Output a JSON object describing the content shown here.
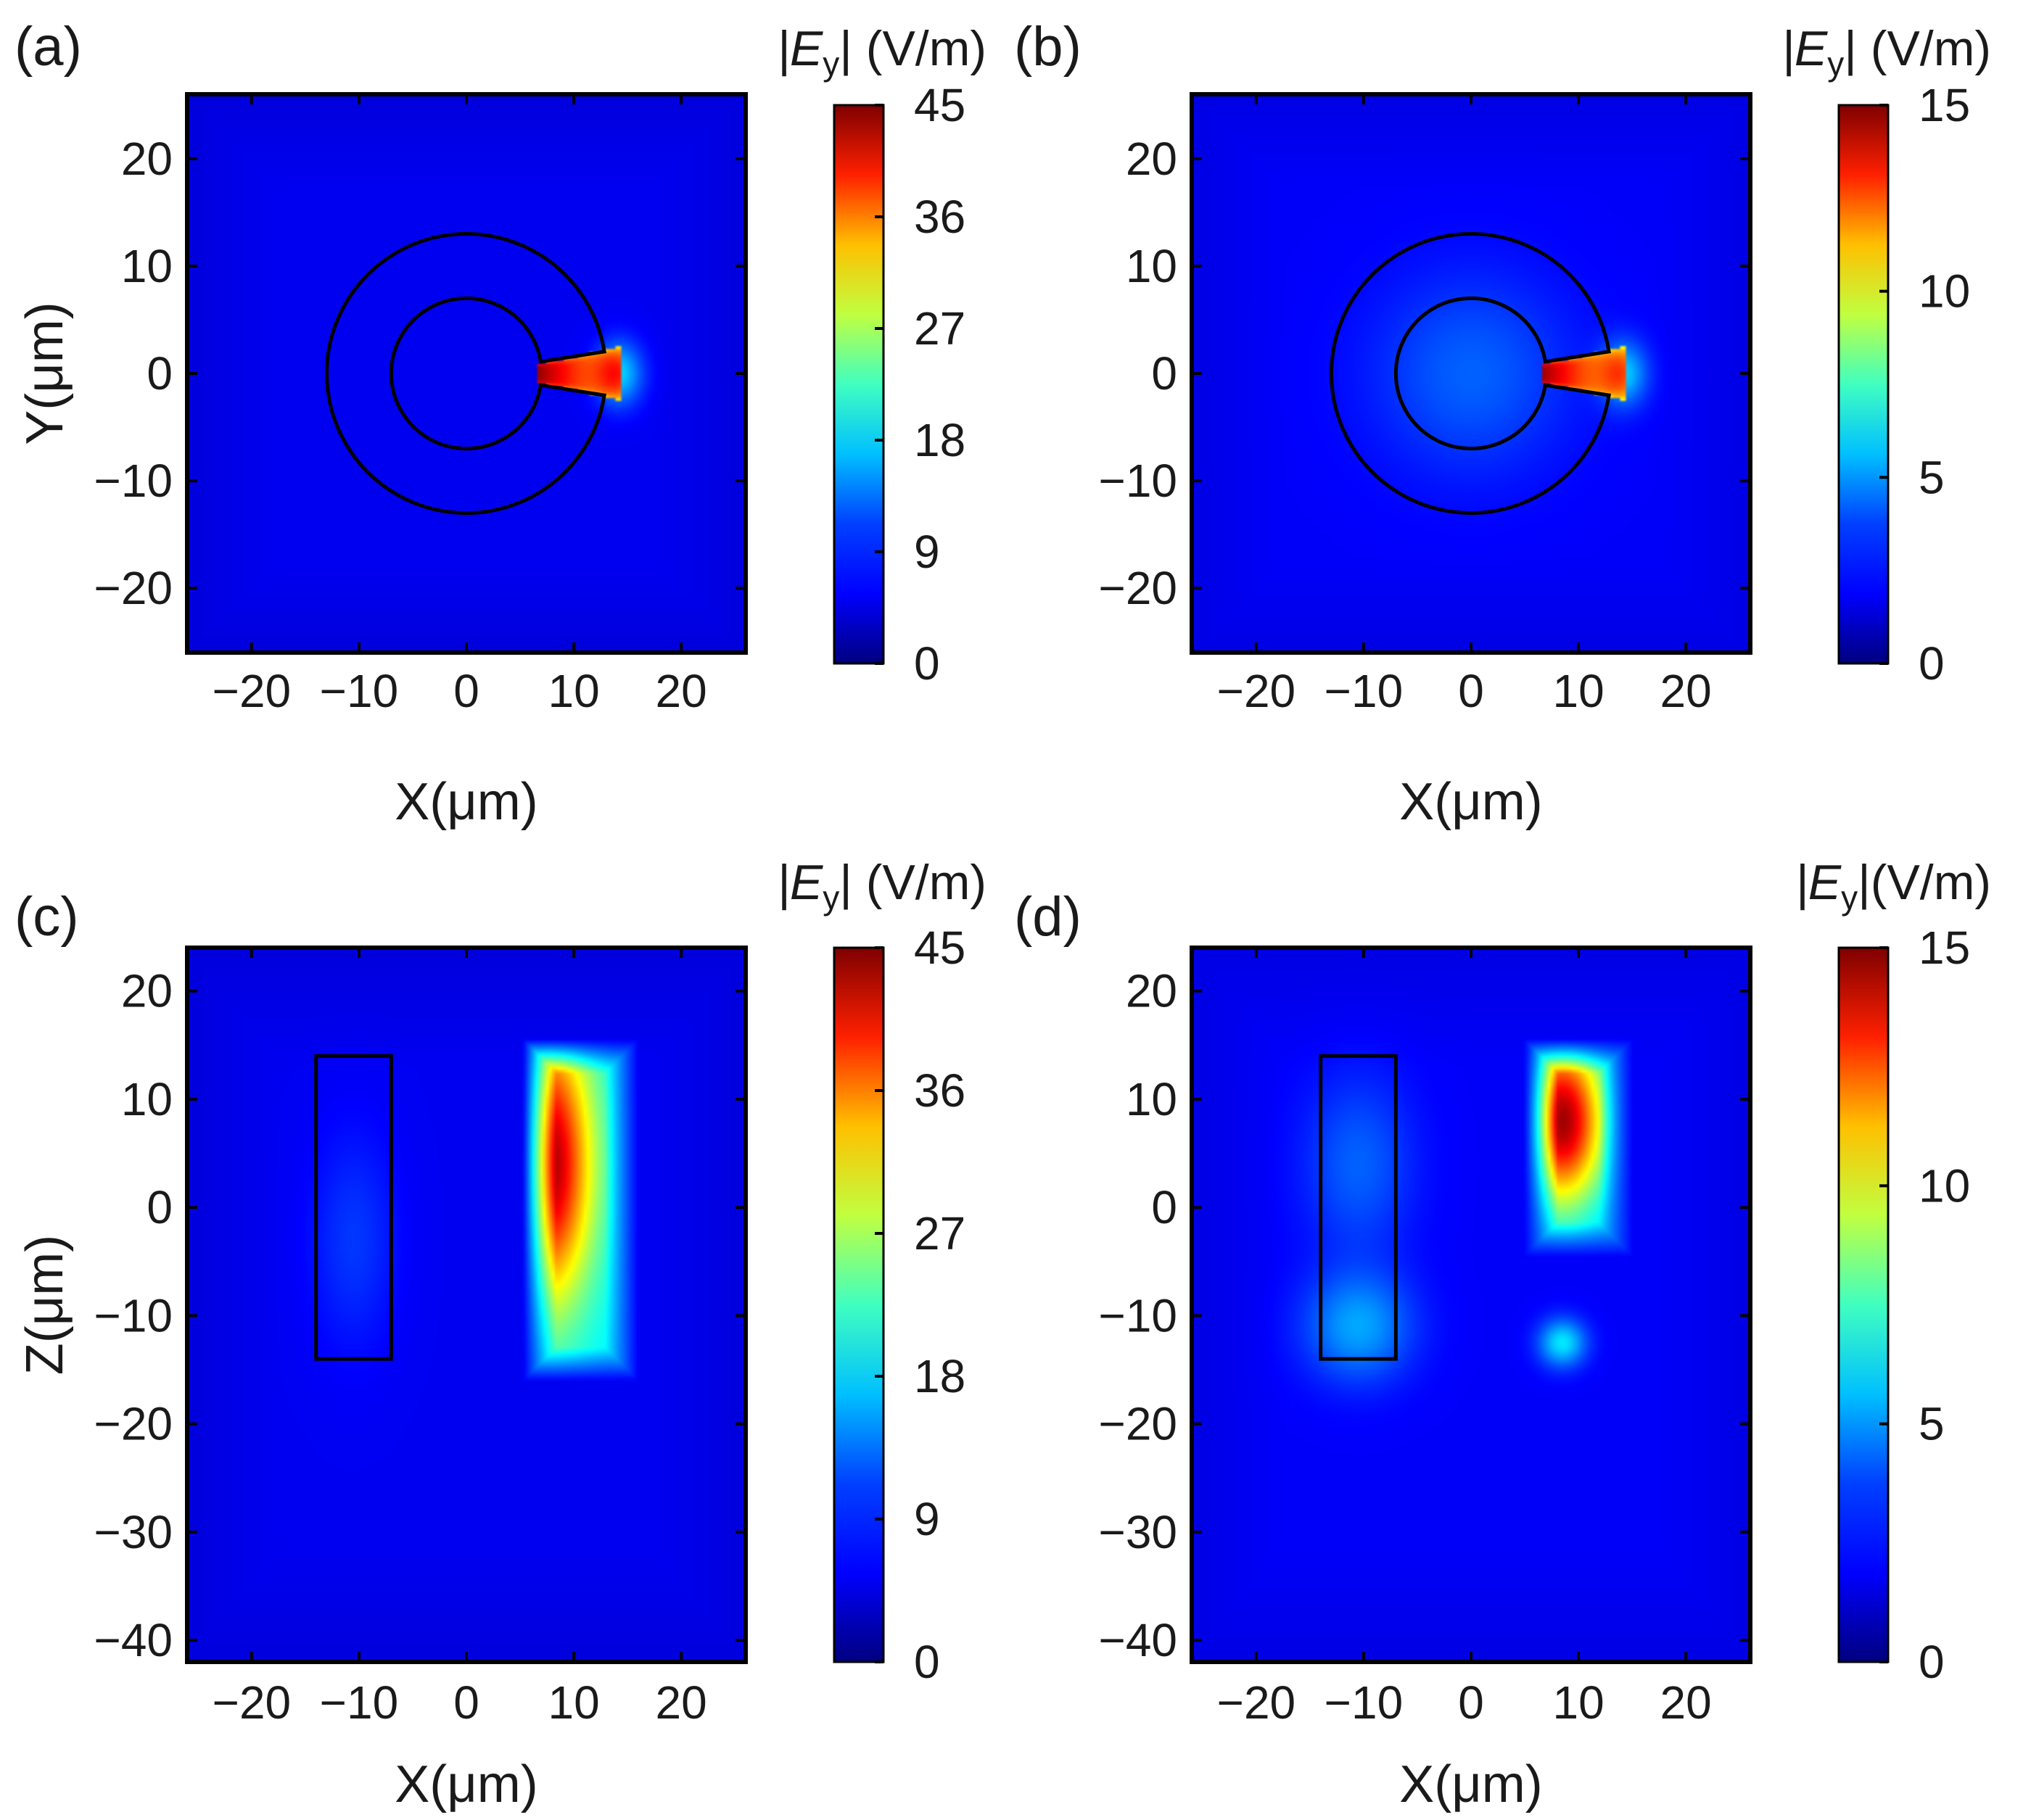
{
  "colors": {
    "background_field": "#0a33d6",
    "geometry_outline": "#000000",
    "colormap": [
      "#00007f",
      "#0000ff",
      "#0080ff",
      "#00ffff",
      "#80ff80",
      "#ffff00",
      "#ff8000",
      "#ff0000",
      "#7f0000"
    ]
  },
  "chart_data": [
    {
      "panel": "(a)",
      "type": "heatmap",
      "title": "",
      "xlabel": "X(μm)",
      "ylabel": "Y(μm)",
      "xlim": [
        -26,
        26
      ],
      "ylim": [
        -26,
        26
      ],
      "xticks": [
        -20,
        -10,
        0,
        10,
        20
      ],
      "yticks": [
        20,
        10,
        0,
        -10,
        -20
      ],
      "xtick_labels": [
        "−20",
        "−10",
        "0",
        "10",
        "20"
      ],
      "ytick_labels": [
        "20",
        "10",
        "0",
        "−10",
        "−20"
      ],
      "colorbar": {
        "title": "|E",
        "title_subscript": "y",
        "title_suffix": "| (V/m)",
        "range": [
          0,
          45
        ],
        "ticks": [
          0,
          9,
          18,
          27,
          36,
          45
        ],
        "tick_labels": [
          "0",
          "9",
          "18",
          "27",
          "36",
          "45"
        ]
      },
      "background_level": 5,
      "geometry": {
        "kind": "split-ring",
        "center": [
          0,
          0
        ],
        "inner_radius": 7,
        "outer_radius": 13,
        "gap_half_angle_deg": 9
      },
      "hotspots": [
        {
          "kind": "wedge",
          "center": [
            0,
            0
          ],
          "r_from": 6.7,
          "r_to": 14.5,
          "half_angle_deg": 8,
          "level_inner": 44,
          "level_outer": 28
        },
        {
          "kind": "blob",
          "x": 14.2,
          "y": 0,
          "sx": 2.2,
          "sy": 3.0,
          "level": 10
        }
      ]
    },
    {
      "panel": "(b)",
      "type": "heatmap",
      "title": "",
      "xlabel": "X(μm)",
      "ylabel": "",
      "xlim": [
        -26,
        26
      ],
      "ylim": [
        -26,
        26
      ],
      "xticks": [
        -20,
        -10,
        0,
        10,
        20
      ],
      "yticks": [
        20,
        10,
        0,
        -10,
        -20
      ],
      "xtick_labels": [
        "−20",
        "−10",
        "0",
        "10",
        "20"
      ],
      "ytick_labels": [
        "20",
        "10",
        "0",
        "−10",
        "−20"
      ],
      "colorbar": {
        "title": "|E",
        "title_subscript": "y",
        "title_suffix": "| (V/m)",
        "range": [
          0,
          15
        ],
        "ticks": [
          0,
          5,
          10,
          15
        ],
        "tick_labels": [
          "0",
          "5",
          "10",
          "15"
        ]
      },
      "background_level": 1.8,
      "geometry": {
        "kind": "split-ring",
        "center": [
          0,
          0
        ],
        "inner_radius": 7,
        "outer_radius": 13,
        "gap_half_angle_deg": 9
      },
      "hotspots": [
        {
          "kind": "blob",
          "x": 0,
          "y": 0,
          "sx": 9,
          "sy": 9,
          "level": 1.5
        },
        {
          "kind": "wedge",
          "center": [
            0,
            0
          ],
          "r_from": 6.7,
          "r_to": 14.5,
          "half_angle_deg": 8,
          "level_inner": 14.5,
          "level_outer": 9
        },
        {
          "kind": "blob",
          "x": 14.2,
          "y": 0,
          "sx": 2.2,
          "sy": 3.0,
          "level": 3
        }
      ]
    },
    {
      "panel": "(c)",
      "type": "heatmap",
      "title": "",
      "xlabel": "X(μm)",
      "ylabel": "Z(μm)",
      "xlim": [
        -26,
        26
      ],
      "ylim": [
        -42,
        24
      ],
      "xticks": [
        -20,
        -10,
        0,
        10,
        20
      ],
      "yticks": [
        20,
        10,
        0,
        -10,
        -20,
        -30,
        -40
      ],
      "xtick_labels": [
        "−20",
        "−10",
        "0",
        "10",
        "20"
      ],
      "ytick_labels": [
        "20",
        "10",
        "0",
        "−10",
        "−20",
        "−30",
        "−40"
      ],
      "colorbar": {
        "title": "|E",
        "title_subscript": "y",
        "title_suffix": "| (V/m)",
        "range": [
          0,
          45
        ],
        "ticks": [
          0,
          9,
          18,
          27,
          36,
          45
        ],
        "tick_labels": [
          "0",
          "9",
          "18",
          "27",
          "36",
          "45"
        ]
      },
      "background_level": 5,
      "geometry": {
        "kind": "rectangle",
        "x": [
          -14,
          -7
        ],
        "z": [
          -14,
          14
        ]
      },
      "hotspots": [
        {
          "kind": "blob",
          "x": -10.5,
          "y": -3,
          "sx": 4,
          "sy": 10,
          "level": 3
        },
        {
          "kind": "column",
          "x0": 6.8,
          "x1": 14.5,
          "z0": -14.5,
          "z1": 14,
          "x_peak": 7.5,
          "z_peak": 4,
          "level_peak": 44,
          "level_base": 16
        }
      ]
    },
    {
      "panel": "(d)",
      "type": "heatmap",
      "title": "",
      "xlabel": "X(μm)",
      "ylabel": "",
      "xlim": [
        -26,
        26
      ],
      "ylim": [
        -42,
        24
      ],
      "xticks": [
        -20,
        -10,
        0,
        10,
        20
      ],
      "yticks": [
        20,
        10,
        0,
        -10,
        -20,
        -30,
        -40
      ],
      "xtick_labels": [
        "−20",
        "−10",
        "0",
        "10",
        "20"
      ],
      "ytick_labels": [
        "20",
        "10",
        "0",
        "−10",
        "−20",
        "−30",
        "−40"
      ],
      "colorbar": {
        "title": "|E",
        "title_subscript": "y",
        "title_suffix": "|(V/m)",
        "range": [
          0,
          15
        ],
        "ticks": [
          0,
          5,
          10,
          15
        ],
        "tick_labels": [
          "0",
          "5",
          "10",
          "15"
        ]
      },
      "background_level": 1.8,
      "geometry": {
        "kind": "rectangle",
        "x": [
          -14,
          -7
        ],
        "z": [
          -14,
          14
        ]
      },
      "hotspots": [
        {
          "kind": "blob",
          "x": -10.5,
          "y": 4,
          "sx": 5,
          "sy": 8,
          "level": 1.5
        },
        {
          "kind": "blob",
          "x": -10.5,
          "y": -11,
          "sx": 5,
          "sy": 5,
          "level": 2.5
        },
        {
          "kind": "column",
          "x0": 6.5,
          "x1": 13.5,
          "z0": -3,
          "z1": 14,
          "x_peak": 8.5,
          "z_peak": 8,
          "level_peak": 14.5,
          "level_base": 4.5
        },
        {
          "kind": "blob",
          "x": 8.5,
          "y": -12.5,
          "sx": 2.2,
          "sy": 2.2,
          "level": 3.5
        }
      ]
    }
  ]
}
